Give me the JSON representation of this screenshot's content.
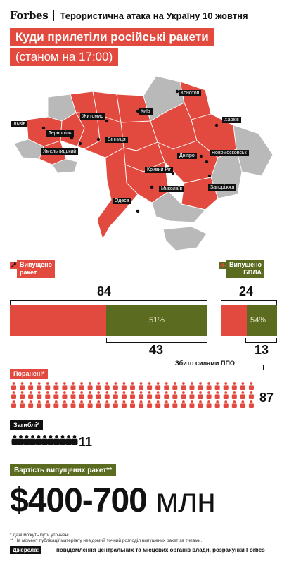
{
  "header": {
    "brand": "Forbes",
    "title": "Терористична атака на Україну 10 жовтня"
  },
  "title": "Куди прилетіли російські ракети",
  "subtitle": "(станом на 17:00)",
  "map": {
    "cities": [
      {
        "name": "Львів"
      },
      {
        "name": "Житомир"
      },
      {
        "name": "Київ"
      },
      {
        "name": "Конотоп"
      },
      {
        "name": "Тернопіль"
      },
      {
        "name": "Харків"
      },
      {
        "name": "Хмельницький"
      },
      {
        "name": "Вінниця"
      },
      {
        "name": "Дніпро"
      },
      {
        "name": "Новомосковськ"
      },
      {
        "name": "Кривий Ріг"
      },
      {
        "name": "Миколаїв"
      },
      {
        "name": "Запоріжжя"
      },
      {
        "name": "Одеса"
      }
    ],
    "colors": {
      "hit": "#e34a3f",
      "nohit": "#b9b9b9",
      "border": "#ffffff"
    }
  },
  "chart_data": [
    {
      "type": "bar",
      "title": "Випущено ракет",
      "total": 84,
      "series": [
        {
          "name": "",
          "values": [
            41
          ]
        },
        {
          "name": "Збито силами ППО",
          "values": [
            43
          ]
        }
      ],
      "shot_down_percent": "51%",
      "colors": {
        "launched": "#e34a3f",
        "shot_down": "#5b6b20"
      }
    },
    {
      "type": "bar",
      "title": "Випущено БПЛА",
      "total": 24,
      "series": [
        {
          "name": "",
          "values": [
            11
          ]
        },
        {
          "name": "Збито силами ППО",
          "values": [
            13
          ]
        }
      ],
      "shot_down_percent": "54%",
      "colors": {
        "launched": "#e34a3f",
        "shot_down": "#5b6b20"
      }
    }
  ],
  "stats": {
    "missiles_label_line1": "Випущено",
    "missiles_label_line2": "ракет",
    "missiles_total": "84",
    "missiles_shot": "43",
    "missiles_pct": "51%",
    "drones_label_line1": "Випущено",
    "drones_label_line2": "БПЛА",
    "drones_total": "24",
    "drones_shot": "13",
    "drones_pct": "54%",
    "shot_down_label": "Збито силами ППО",
    "injured_label": "Поранені*",
    "injured_count": 87,
    "injured_value": "87",
    "killed_label": "Загиблі*",
    "killed_count": 11,
    "killed_value": "11"
  },
  "cost": {
    "label": "Вартість випущених ракет**",
    "value": "$400-700",
    "unit": "млн"
  },
  "footnotes": {
    "note1": "* Дані можуть бути уточнені.",
    "note2": "** На момент публікації матеріалу невідомий точний розподіл випущених ракет за типами.",
    "source_label": "Джерела:",
    "source_text": "повідомлення центральних та місцевих органів влади, розрахунки Forbes"
  }
}
